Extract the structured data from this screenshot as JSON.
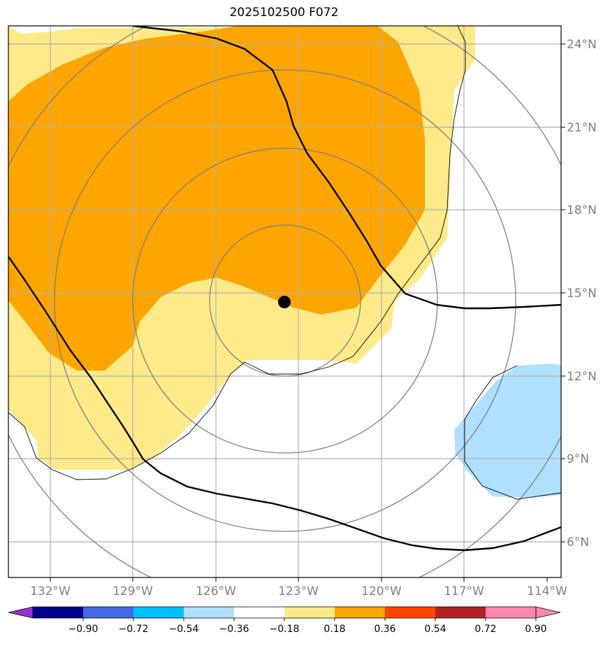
{
  "title": "2025102500 F072",
  "map": {
    "lon_ticks": [
      "132°W",
      "129°W",
      "126°W",
      "123°W",
      "120°W",
      "117°W",
      "114°W"
    ],
    "lat_ticks": [
      "24°N",
      "21°N",
      "18°N",
      "15°N",
      "12°N",
      "9°N",
      "6°N"
    ],
    "center_marker": "storm-center",
    "fill_colors": {
      "light_yellow": "#ffea8a",
      "orange": "#ffa500",
      "light_blue": "#b0e0ff"
    },
    "line_colors": {
      "track": "#000000",
      "range_rings": "#808080",
      "gridlines": "#b0b0b0"
    }
  },
  "colorbar": {
    "ticks": [
      "−0.90",
      "−0.72",
      "−0.54",
      "−0.36",
      "−0.18",
      "0.18",
      "0.36",
      "0.54",
      "0.72",
      "0.90"
    ],
    "colors": [
      "#9932cc",
      "#00008b",
      "#4169e1",
      "#00bfff",
      "#b0e0ff",
      "#ffffff",
      "#ffea8a",
      "#ffa500",
      "#ff4500",
      "#b22222",
      "#ff88aa",
      "#ff88aa"
    ]
  }
}
